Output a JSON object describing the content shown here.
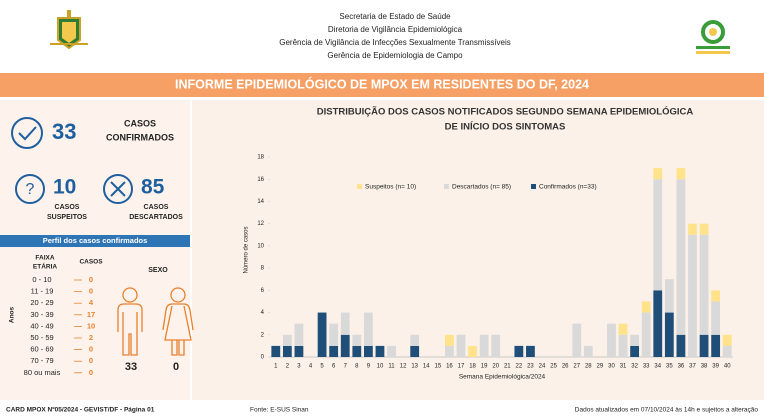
{
  "header": {
    "lines": [
      "Secretaria de Estado de Saúde",
      "Diretoria de Vigilância Epidemiológica",
      "Gerência de Vigilância de Infecções Sexualmente Transmissíveis",
      "Gerência de Epidemiologia de Campo"
    ],
    "banner": "INFORME EPIDEMIOLÓGICO DE MPOX EM RESIDENTES DO DF, 2024"
  },
  "kpis": {
    "confirmed": {
      "value": 33,
      "label": [
        "CASOS",
        "CONFIRMADOS"
      ]
    },
    "suspected": {
      "value": 10,
      "label": [
        "CASOS",
        "SUSPEITOS"
      ]
    },
    "discarded": {
      "value": 85,
      "label": [
        "CASOS",
        "DESCARTADOS"
      ]
    }
  },
  "profile": {
    "title": "Perfil dos casos confirmados",
    "age_header": [
      "FAIXA",
      "ETÁRIA"
    ],
    "cases_header": "CASOS",
    "sex_header": "SEXO",
    "axis_label": "Anos",
    "ages": [
      "0 - 10",
      "11 - 19",
      "20 - 29",
      "30 - 39",
      "40 - 49",
      "50 - 59",
      "60 - 69",
      "70 - 79",
      "80 ou mais"
    ],
    "counts": [
      0,
      0,
      4,
      17,
      10,
      2,
      0,
      0,
      0
    ],
    "male": 33,
    "female": 0
  },
  "chart_data": {
    "type": "stacked_bar",
    "title": [
      "DISTRIBUIÇÃO DOS CASOS NOTIFICADOS SEGUNDO SEMANA EPIDEMIOLÓGICA",
      "DE INÍCIO DOS SINTOMAS"
    ],
    "x_label": "Semana Epidemiológica/2024",
    "y_label": "Número de casos",
    "categories": [
      "1",
      "2",
      "3",
      "4",
      "5",
      "6",
      "7",
      "8",
      "9",
      "10",
      "11",
      "12",
      "13",
      "14",
      "15",
      "16",
      "17",
      "18",
      "19",
      "20",
      "21",
      "22",
      "23",
      "24",
      "25",
      "26",
      "27",
      "28",
      "29",
      "30",
      "31",
      "32",
      "33",
      "34",
      "35",
      "36",
      "37",
      "38",
      "39",
      "40"
    ],
    "series": [
      {
        "name": "Confirmados (n=33)",
        "color": "#1f4e79",
        "values": [
          1,
          1,
          1,
          0,
          4,
          1,
          2,
          1,
          1,
          1,
          0,
          0,
          1,
          0,
          0,
          0,
          0,
          0,
          0,
          0,
          0,
          1,
          1,
          0,
          0,
          0,
          0,
          0,
          0,
          0,
          0,
          1,
          0,
          6,
          4,
          2,
          0,
          2,
          2,
          0
        ]
      },
      {
        "name": "Descartados (n= 85)",
        "color": "#d9d9d9",
        "values": [
          0,
          1,
          2,
          0,
          0,
          2,
          2,
          1,
          3,
          0,
          1,
          0,
          1,
          0,
          0,
          1,
          2,
          0,
          2,
          2,
          0,
          0,
          0,
          0,
          0,
          0,
          3,
          1,
          0,
          3,
          2,
          1,
          4,
          10,
          3,
          14,
          11,
          9,
          3,
          1
        ]
      },
      {
        "name": "Suspeitos (n= 10)",
        "color": "#ffe28a",
        "values": [
          0,
          0,
          0,
          0,
          0,
          0,
          0,
          0,
          0,
          0,
          0,
          0,
          0,
          0,
          0,
          1,
          0,
          1,
          0,
          0,
          0,
          0,
          0,
          0,
          0,
          0,
          0,
          0,
          0,
          0,
          1,
          0,
          1,
          1,
          0,
          1,
          1,
          1,
          1,
          1
        ]
      }
    ],
    "legend_order": [
      2,
      1,
      0
    ],
    "ylim": [
      0,
      18
    ],
    "yticks": [
      0,
      2,
      4,
      6,
      8,
      10,
      12,
      14,
      16,
      18
    ],
    "grid": false
  },
  "footer": [
    "CARD MPOX Nº05/2024 - GEVIST/DF - Página 01",
    "Fonte: E-SUS Sinan",
    "Dados atualizados em 07/10/2024 às 14h e sujeitos a alteração"
  ]
}
